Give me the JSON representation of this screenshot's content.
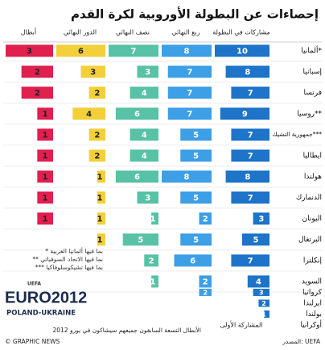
{
  "title": "إحصاءات عن البطولة الأوروبية لكرة القدم",
  "columns": [
    {
      "name": "مشاركات في البطولة",
      "color": "#1d74c9"
    },
    {
      "name": "ربع النهائي",
      "color": "#3d9fe6"
    },
    {
      "name": "نصف النهائي",
      "color": "#58c2a6"
    },
    {
      "name": "الدور النهائي",
      "color": "#f3cf3a"
    },
    {
      "name": "أبطال",
      "color": "#e0204f"
    }
  ],
  "rows": [
    {
      "country": "ألمانيا*",
      "values": [
        10,
        8,
        7,
        6,
        3
      ]
    },
    {
      "country": "إسبانيا",
      "values": [
        8,
        7,
        3,
        3,
        2
      ]
    },
    {
      "country": "فرنسا",
      "values": [
        7,
        7,
        4,
        2,
        2
      ]
    },
    {
      "country": "روسيا**",
      "values": [
        9,
        7,
        6,
        4,
        1
      ]
    },
    {
      "country": "جمهورية التشيك***",
      "values": [
        7,
        5,
        4,
        2,
        1
      ]
    },
    {
      "country": "ايطاليا",
      "values": [
        7,
        5,
        4,
        2,
        1
      ]
    },
    {
      "country": "هولندا",
      "values": [
        8,
        8,
        6,
        1,
        1
      ]
    },
    {
      "country": "الدنمارك",
      "values": [
        7,
        5,
        3,
        1,
        1
      ]
    },
    {
      "country": "اليونان",
      "values": [
        3,
        2,
        1,
        1,
        1
      ]
    },
    {
      "country": "البرتغال",
      "values": [
        5,
        5,
        5,
        1,
        null
      ]
    },
    {
      "country": "إنكلترا",
      "values": [
        7,
        6,
        2,
        null,
        null
      ]
    },
    {
      "country": "السويد",
      "values": [
        4,
        2,
        1,
        null,
        null
      ]
    },
    {
      "country": "كرواتيا",
      "values": [
        3,
        2,
        null,
        null,
        null
      ]
    },
    {
      "country": "ايرلندا",
      "values": [
        2,
        null,
        null,
        null,
        null
      ]
    },
    {
      "country": "بولندا",
      "values": [
        1,
        null,
        null,
        null,
        null
      ]
    },
    {
      "country": "أوكرانيا",
      "values": [
        null,
        null,
        null,
        null,
        null
      ]
    }
  ],
  "first_participation": "المشاركة الأولى",
  "footnotes": [
    "* بما فيها ألمانيا الغربية",
    "** بما فيها الاتحاد السوفياتي",
    "*** بما فيها تشيكوسلوفاكيا"
  ],
  "logo": {
    "brand": "UEFA",
    "name": "EURO2012",
    "hosts": "POLAND-UKRAINE"
  },
  "note": "الأبطال التسعة السابقون جميعهم سيشاكون في يورو 2012",
  "source": "المصدر: UEFA",
  "credit": "© GRAPHIC NEWS"
}
